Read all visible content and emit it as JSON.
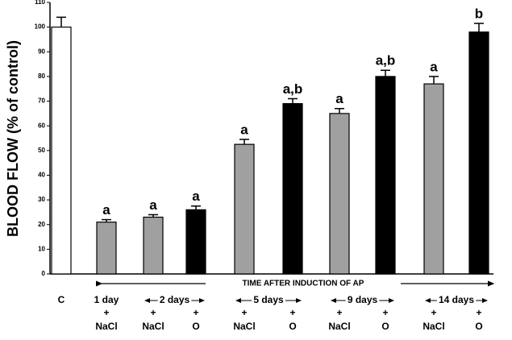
{
  "chart_data": {
    "type": "bar",
    "ylabel": "BLOOD FLOW (% of control)",
    "xlabel": "TIME AFTER INDUCTION OF AP",
    "categories": [
      "C",
      "NaCl",
      "NaCl",
      "O",
      "NaCl",
      "O",
      "NaCl",
      "O",
      "NaCl",
      "O"
    ],
    "plus": "+",
    "groups": [
      {
        "label": "1 day",
        "first": 1,
        "last": 1
      },
      {
        "label": "2 days",
        "first": 2,
        "last": 3
      },
      {
        "label": "5 days",
        "first": 4,
        "last": 5
      },
      {
        "label": "9 days",
        "first": 6,
        "last": 7
      },
      {
        "label": "14 days",
        "first": 8,
        "last": 9
      }
    ],
    "values": [
      100,
      21,
      23,
      26,
      52.5,
      69,
      65,
      80,
      77,
      98
    ],
    "errors": [
      4,
      1,
      1,
      1.5,
      2,
      2,
      2,
      2.5,
      3,
      3.5
    ],
    "annotations": [
      null,
      "a",
      "a",
      "a",
      "a",
      "a,b",
      "a",
      "a,b",
      "a",
      "b"
    ],
    "colors": [
      "#ffffff",
      "#a0a0a0",
      "#a0a0a0",
      "#000000",
      "#a0a0a0",
      "#000000",
      "#a0a0a0",
      "#000000",
      "#a0a0a0",
      "#000000"
    ],
    "ylim": [
      0,
      110
    ],
    "yticks": [
      0,
      10,
      20,
      30,
      40,
      50,
      60,
      70,
      80,
      90,
      100,
      110
    ]
  }
}
